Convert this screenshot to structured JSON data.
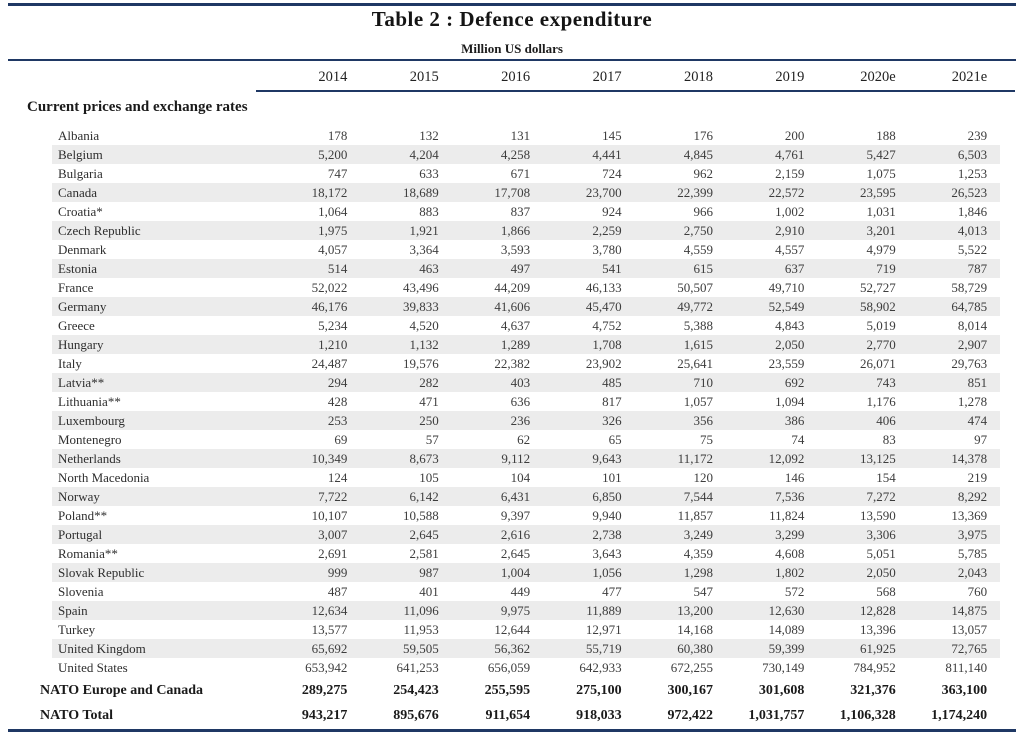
{
  "table": {
    "title": "Table 2 : Defence expenditure",
    "subtitle": "Million US dollars",
    "section_label": "Current prices and exchange rates",
    "years": [
      "2014",
      "2015",
      "2016",
      "2017",
      "2018",
      "2019",
      "2020e",
      "2021e"
    ],
    "rows": [
      {
        "label": "Albania",
        "values": [
          "178",
          "132",
          "131",
          "145",
          "176",
          "200",
          "188",
          "239"
        ]
      },
      {
        "label": "Belgium",
        "values": [
          "5,200",
          "4,204",
          "4,258",
          "4,441",
          "4,845",
          "4,761",
          "5,427",
          "6,503"
        ]
      },
      {
        "label": "Bulgaria",
        "values": [
          "747",
          "633",
          "671",
          "724",
          "962",
          "2,159",
          "1,075",
          "1,253"
        ]
      },
      {
        "label": "Canada",
        "values": [
          "18,172",
          "18,689",
          "17,708",
          "23,700",
          "22,399",
          "22,572",
          "23,595",
          "26,523"
        ]
      },
      {
        "label": "Croatia*",
        "values": [
          "1,064",
          "883",
          "837",
          "924",
          "966",
          "1,002",
          "1,031",
          "1,846"
        ]
      },
      {
        "label": "Czech Republic",
        "values": [
          "1,975",
          "1,921",
          "1,866",
          "2,259",
          "2,750",
          "2,910",
          "3,201",
          "4,013"
        ]
      },
      {
        "label": "Denmark",
        "values": [
          "4,057",
          "3,364",
          "3,593",
          "3,780",
          "4,559",
          "4,557",
          "4,979",
          "5,522"
        ]
      },
      {
        "label": "Estonia",
        "values": [
          "514",
          "463",
          "497",
          "541",
          "615",
          "637",
          "719",
          "787"
        ]
      },
      {
        "label": "France",
        "values": [
          "52,022",
          "43,496",
          "44,209",
          "46,133",
          "50,507",
          "49,710",
          "52,727",
          "58,729"
        ]
      },
      {
        "label": "Germany",
        "values": [
          "46,176",
          "39,833",
          "41,606",
          "45,470",
          "49,772",
          "52,549",
          "58,902",
          "64,785"
        ]
      },
      {
        "label": "Greece",
        "values": [
          "5,234",
          "4,520",
          "4,637",
          "4,752",
          "5,388",
          "4,843",
          "5,019",
          "8,014"
        ]
      },
      {
        "label": "Hungary",
        "values": [
          "1,210",
          "1,132",
          "1,289",
          "1,708",
          "1,615",
          "2,050",
          "2,770",
          "2,907"
        ]
      },
      {
        "label": "Italy",
        "values": [
          "24,487",
          "19,576",
          "22,382",
          "23,902",
          "25,641",
          "23,559",
          "26,071",
          "29,763"
        ]
      },
      {
        "label": "Latvia**",
        "values": [
          "294",
          "282",
          "403",
          "485",
          "710",
          "692",
          "743",
          "851"
        ]
      },
      {
        "label": "Lithuania**",
        "values": [
          "428",
          "471",
          "636",
          "817",
          "1,057",
          "1,094",
          "1,176",
          "1,278"
        ]
      },
      {
        "label": "Luxembourg",
        "values": [
          "253",
          "250",
          "236",
          "326",
          "356",
          "386",
          "406",
          "474"
        ]
      },
      {
        "label": "Montenegro",
        "values": [
          "69",
          "57",
          "62",
          "65",
          "75",
          "74",
          "83",
          "97"
        ]
      },
      {
        "label": "Netherlands",
        "values": [
          "10,349",
          "8,673",
          "9,112",
          "9,643",
          "11,172",
          "12,092",
          "13,125",
          "14,378"
        ]
      },
      {
        "label": "North Macedonia",
        "values": [
          "124",
          "105",
          "104",
          "101",
          "120",
          "146",
          "154",
          "219"
        ]
      },
      {
        "label": "Norway",
        "values": [
          "7,722",
          "6,142",
          "6,431",
          "6,850",
          "7,544",
          "7,536",
          "7,272",
          "8,292"
        ]
      },
      {
        "label": "Poland**",
        "values": [
          "10,107",
          "10,588",
          "9,397",
          "9,940",
          "11,857",
          "11,824",
          "13,590",
          "13,369"
        ]
      },
      {
        "label": "Portugal",
        "values": [
          "3,007",
          "2,645",
          "2,616",
          "2,738",
          "3,249",
          "3,299",
          "3,306",
          "3,975"
        ]
      },
      {
        "label": "Romania**",
        "values": [
          "2,691",
          "2,581",
          "2,645",
          "3,643",
          "4,359",
          "4,608",
          "5,051",
          "5,785"
        ]
      },
      {
        "label": "Slovak Republic",
        "values": [
          "999",
          "987",
          "1,004",
          "1,056",
          "1,298",
          "1,802",
          "2,050",
          "2,043"
        ]
      },
      {
        "label": "Slovenia",
        "values": [
          "487",
          "401",
          "449",
          "477",
          "547",
          "572",
          "568",
          "760"
        ]
      },
      {
        "label": "Spain",
        "values": [
          "12,634",
          "11,096",
          "9,975",
          "11,889",
          "13,200",
          "12,630",
          "12,828",
          "14,875"
        ]
      },
      {
        "label": "Turkey",
        "values": [
          "13,577",
          "11,953",
          "12,644",
          "12,971",
          "14,168",
          "14,089",
          "13,396",
          "13,057"
        ]
      },
      {
        "label": "United Kingdom",
        "values": [
          "65,692",
          "59,505",
          "56,362",
          "55,719",
          "60,380",
          "59,399",
          "61,925",
          "72,765"
        ]
      },
      {
        "label": "United States",
        "values": [
          "653,942",
          "641,253",
          "656,059",
          "642,933",
          "672,255",
          "730,149",
          "784,952",
          "811,140"
        ]
      }
    ],
    "totals": [
      {
        "label": "NATO Europe and Canada",
        "values": [
          "289,275",
          "254,423",
          "255,595",
          "275,100",
          "300,167",
          "301,608",
          "321,376",
          "363,100"
        ]
      },
      {
        "label": "NATO Total",
        "values": [
          "943,217",
          "895,676",
          "911,654",
          "918,033",
          "972,422",
          "1,031,757",
          "1,106,328",
          "1,174,240"
        ]
      }
    ],
    "colors": {
      "rule_navy": "#1f3864",
      "stripe": "#ececec",
      "text": "#3d3d3d"
    }
  }
}
